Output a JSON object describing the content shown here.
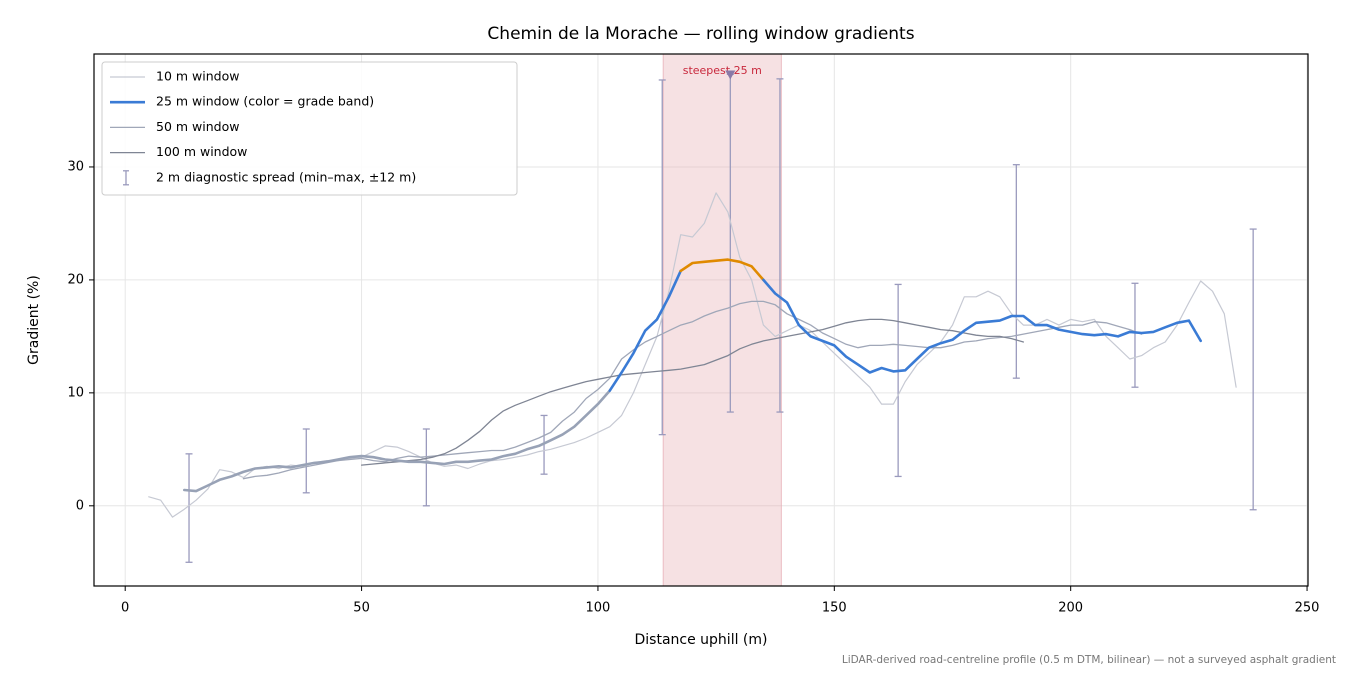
{
  "chart_data": {
    "type": "line",
    "title": "Chemin de la Morache — rolling window gradients",
    "xlabel": "Distance uphill (m)",
    "ylabel": "Gradient (%)",
    "footnote": "LiDAR-derived road-centreline profile (0.5 m DTM, bilinear) — not a surveyed asphalt gradient",
    "xlim": [
      -6.6,
      250.2
    ],
    "ylim": [
      -7.1,
      40.0
    ],
    "xticks": [
      0,
      50,
      100,
      150,
      200,
      250
    ],
    "yticks": [
      0,
      10,
      20,
      30
    ],
    "grid": true,
    "legend": "upper left",
    "x": [
      5,
      7.5,
      10,
      12.5,
      15,
      17.5,
      20,
      22.5,
      25,
      27.5,
      30,
      32.5,
      35,
      37.5,
      40,
      42.5,
      45,
      47.5,
      50,
      52.5,
      55,
      57.5,
      60,
      62.5,
      65,
      67.5,
      70,
      72.5,
      75,
      77.5,
      80,
      82.5,
      85,
      87.5,
      90,
      92.5,
      95,
      97.5,
      100,
      102.5,
      105,
      107.5,
      110,
      112.5,
      115,
      117.5,
      120,
      122.5,
      125,
      127.5,
      130,
      132.5,
      135,
      137.5,
      140,
      142.5,
      145,
      147.5,
      150,
      152.5,
      155,
      157.5,
      160,
      162.5,
      165,
      167.5,
      170,
      172.5,
      175,
      177.5,
      180,
      182.5,
      185,
      187.5,
      190,
      192.5,
      195,
      197.5,
      200,
      202.5,
      205,
      207.5,
      210,
      212.5,
      215,
      217.5,
      220,
      222.5,
      225,
      227.5,
      230,
      232.5,
      235,
      237.5
    ],
    "series": [
      {
        "name": "10 m window",
        "color": "#c6c9d3",
        "width": 1.2,
        "values": [
          0.8,
          0.5,
          -1.0,
          -0.3,
          0.5,
          1.5,
          3.2,
          3.0,
          2.5,
          3.3,
          3.5,
          3.3,
          3.6,
          3.5,
          3.8,
          4.0,
          4.0,
          4.2,
          4.3,
          4.8,
          5.3,
          5.2,
          4.8,
          4.3,
          3.8,
          3.5,
          3.6,
          3.3,
          3.7,
          4.0,
          4.1,
          4.3,
          4.5,
          4.8,
          5.0,
          5.3,
          5.6,
          6.0,
          6.5,
          7.0,
          8.0,
          10.0,
          12.5,
          15.0,
          19.0,
          24.0,
          23.8,
          25.0,
          27.7,
          26.0,
          22.0,
          20.0,
          16.0,
          15.0,
          15.5,
          16.0,
          15.5,
          14.5,
          13.5,
          12.5,
          11.5,
          10.5,
          9.0,
          9.0,
          11.0,
          12.5,
          13.5,
          14.5,
          16.0,
          18.5,
          18.5,
          19.0,
          18.5,
          17.0,
          16.0,
          16.0,
          16.5,
          16.0,
          16.5,
          16.3,
          16.5,
          15.0,
          14.0,
          13.0,
          13.3,
          14.0,
          14.5,
          16.0,
          18.0,
          19.9,
          19.0,
          17.0,
          10.5,
          null
        ]
      },
      {
        "name": "25 m window (color = grade band)",
        "color": "#3a7bd5",
        "width": 2.6,
        "band_edges": [
          10,
          20
        ],
        "band_colors": [
          "#98a2b6",
          "#3a7bd5",
          "#e08a00"
        ],
        "values": [
          null,
          null,
          null,
          1.4,
          1.3,
          1.8,
          2.3,
          2.6,
          3.0,
          3.3,
          3.4,
          3.5,
          3.4,
          3.6,
          3.8,
          3.9,
          4.1,
          4.3,
          4.4,
          4.3,
          4.1,
          4.0,
          3.9,
          3.9,
          3.8,
          3.7,
          3.9,
          3.9,
          4.0,
          4.1,
          4.4,
          4.6,
          5.0,
          5.3,
          5.8,
          6.3,
          7.0,
          8.0,
          9.0,
          10.2,
          11.8,
          13.5,
          15.5,
          16.5,
          18.5,
          20.8,
          21.5,
          21.6,
          21.7,
          21.8,
          21.6,
          21.2,
          20.0,
          18.8,
          18.0,
          16.0,
          15.0,
          14.6,
          14.2,
          13.2,
          12.5,
          11.8,
          12.2,
          11.9,
          12.0,
          13.0,
          14.0,
          14.4,
          14.7,
          15.5,
          16.2,
          16.3,
          16.4,
          16.8,
          16.8,
          16.0,
          16.0,
          15.6,
          15.4,
          15.2,
          15.1,
          15.2,
          15.0,
          15.4,
          15.3,
          15.4,
          15.8,
          16.2,
          16.4,
          14.6,
          null,
          null,
          null,
          null
        ]
      },
      {
        "name": "50 m window",
        "color": "#a0a7b8",
        "width": 1.3,
        "values": [
          null,
          null,
          null,
          null,
          null,
          null,
          null,
          null,
          2.4,
          2.6,
          2.7,
          2.9,
          3.2,
          3.4,
          3.6,
          3.8,
          4.0,
          4.1,
          4.2,
          4.0,
          3.9,
          4.2,
          4.4,
          4.3,
          4.4,
          4.5,
          4.6,
          4.7,
          4.8,
          4.9,
          4.9,
          5.2,
          5.6,
          6.0,
          6.5,
          7.5,
          8.3,
          9.5,
          10.3,
          11.3,
          13.0,
          13.8,
          14.5,
          15.0,
          15.5,
          16.0,
          16.3,
          16.8,
          17.2,
          17.5,
          17.9,
          18.1,
          18.1,
          17.8,
          17.0,
          16.5,
          16.0,
          15.3,
          14.8,
          14.3,
          14.0,
          14.2,
          14.2,
          14.3,
          14.2,
          14.1,
          14.0,
          14.0,
          14.2,
          14.5,
          14.6,
          14.8,
          14.9,
          15.0,
          15.2,
          15.4,
          15.6,
          15.8,
          16.0,
          16.0,
          16.3,
          16.2,
          15.9,
          15.6,
          15.2,
          null,
          null,
          null,
          null,
          null,
          null,
          null,
          null,
          null
        ]
      },
      {
        "name": "100 m window",
        "color": "#7f8594",
        "width": 1.3,
        "values": [
          null,
          null,
          null,
          null,
          null,
          null,
          null,
          null,
          null,
          null,
          null,
          null,
          null,
          null,
          null,
          null,
          null,
          null,
          3.6,
          3.7,
          3.8,
          3.9,
          4.0,
          4.1,
          4.3,
          4.6,
          5.1,
          5.8,
          6.6,
          7.6,
          8.4,
          8.9,
          9.3,
          9.7,
          10.1,
          10.4,
          10.7,
          11.0,
          11.2,
          11.4,
          11.6,
          11.7,
          11.8,
          11.9,
          12.0,
          12.1,
          12.3,
          12.5,
          12.9,
          13.3,
          13.9,
          14.3,
          14.6,
          14.8,
          15.0,
          15.2,
          15.4,
          15.6,
          15.9,
          16.2,
          16.4,
          16.5,
          16.5,
          16.4,
          16.2,
          16.0,
          15.8,
          15.6,
          15.5,
          15.3,
          15.1,
          15.0,
          15.0,
          14.8,
          14.5,
          null,
          null,
          null,
          null,
          null,
          null,
          null,
          null,
          null,
          null,
          null,
          null,
          null,
          null,
          null,
          null,
          null,
          null,
          null
        ]
      }
    ],
    "errorbars": {
      "name": "2 m diagnostic spread (min–max, ±12 m)",
      "color": "#9a9abd",
      "x": [
        13.5,
        38.3,
        63.7,
        88.6,
        113.6,
        128.0,
        138.5,
        163.5,
        188.5,
        213.6,
        238.6
      ],
      "min": [
        -5.0,
        1.15,
        0.0,
        2.8,
        6.3,
        8.3,
        8.3,
        2.6,
        11.3,
        10.5,
        -0.35
      ],
      "max": [
        4.6,
        6.8,
        6.8,
        8.0,
        37.7,
        38.2,
        37.8,
        19.6,
        30.2,
        19.7,
        24.5
      ]
    },
    "highlight": {
      "x0": 113.8,
      "x1": 138.8,
      "label": "steepest 25 m",
      "color": "#e6a8b0",
      "label_color": "#c8283c",
      "marker_x": 128,
      "marker_y": 38.1,
      "marker_color": "#8a7aa8"
    }
  }
}
